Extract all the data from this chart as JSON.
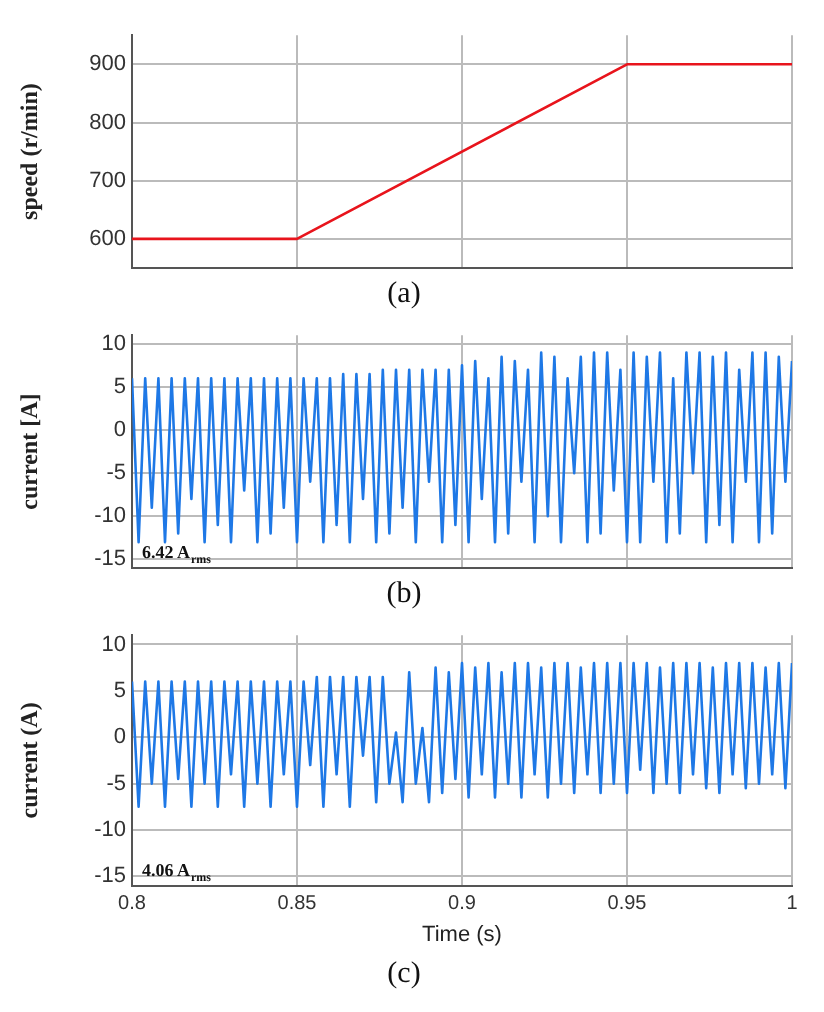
{
  "chart_data": [
    {
      "type": "line",
      "title": "(a)",
      "ylabel": "speed (r/min)",
      "xlim": [
        0.8,
        1
      ],
      "xticks": [
        0.8,
        0.85,
        0.9,
        0.95,
        1
      ],
      "ylim": [
        550,
        950
      ],
      "yticks": [
        600,
        700,
        800,
        900
      ],
      "grid": true,
      "tick_labels": "y",
      "series": [
        {
          "color": "#e8141c",
          "x": [
            0.8,
            0.85,
            0.95,
            1
          ],
          "values": [
            600,
            600,
            900,
            900
          ]
        }
      ]
    },
    {
      "type": "line",
      "title": "(b)",
      "ylabel": "current [A]",
      "xlim": [
        0.8,
        1
      ],
      "xticks": [
        0.8,
        0.85,
        0.9,
        0.95,
        1
      ],
      "ylim": [
        -16,
        11
      ],
      "yticks": [
        -15,
        -10,
        -5,
        0,
        5,
        10
      ],
      "grid": true,
      "tick_labels": "y",
      "annotations": [
        "6.42 A$_{rms}$"
      ],
      "x": [
        0.8,
        0.802,
        0.804,
        0.806,
        0.808,
        0.81,
        0.812,
        0.814,
        0.816,
        0.818,
        0.82,
        0.822,
        0.824,
        0.826,
        0.828,
        0.83,
        0.832,
        0.834,
        0.836,
        0.838,
        0.84,
        0.842,
        0.844,
        0.846,
        0.848,
        0.85,
        0.852,
        0.854,
        0.856,
        0.858,
        0.86,
        0.862,
        0.864,
        0.866,
        0.868,
        0.87,
        0.872,
        0.874,
        0.876,
        0.878,
        0.88,
        0.882,
        0.884,
        0.886,
        0.888,
        0.89,
        0.892,
        0.894,
        0.896,
        0.898,
        0.9,
        0.902,
        0.904,
        0.906,
        0.908,
        0.91,
        0.912,
        0.914,
        0.916,
        0.918,
        0.92,
        0.922,
        0.924,
        0.926,
        0.928,
        0.93,
        0.932,
        0.934,
        0.936,
        0.938,
        0.94,
        0.942,
        0.944,
        0.946,
        0.948,
        0.95,
        0.952,
        0.954,
        0.956,
        0.958,
        0.96,
        0.962,
        0.964,
        0.966,
        0.968,
        0.97,
        0.972,
        0.974,
        0.976,
        0.978,
        0.98,
        0.982,
        0.984,
        0.986,
        0.988,
        0.99,
        0.992,
        0.994,
        0.996,
        0.998,
        1
      ],
      "series": [
        {
          "color": "#1e78e6",
          "values": [
            6,
            -13,
            6,
            -9,
            6,
            -13,
            6,
            -12,
            6,
            -8,
            6,
            -13,
            6,
            -11,
            6,
            -13,
            6,
            -7,
            6,
            -13,
            6,
            -12,
            6,
            -9,
            6,
            -13,
            6,
            -6,
            6,
            -13,
            6,
            -11,
            6.5,
            -13,
            6.5,
            -8,
            6.5,
            -13,
            7,
            -12,
            7,
            -9,
            7,
            -13,
            7,
            -6,
            7,
            -13,
            7,
            -11,
            7.5,
            -13,
            8,
            -8,
            6,
            -13,
            8.5,
            -12,
            8,
            -6,
            7,
            -13,
            9,
            -10,
            8.5,
            -13,
            6,
            -5,
            8.5,
            -13,
            9,
            -12,
            9,
            -7,
            7,
            -13,
            9,
            -13,
            8.5,
            -6,
            9,
            -13,
            6,
            -12,
            9,
            -5,
            9,
            -13,
            8.5,
            -11,
            9,
            -13,
            7,
            -6,
            9,
            -13,
            9,
            -12,
            8.5,
            -6,
            8
          ]
        }
      ]
    },
    {
      "type": "line",
      "title": "(c)",
      "xlabel": "Time (s)",
      "ylabel": "current (A)",
      "xlim": [
        0.8,
        1
      ],
      "xticks": [
        0.8,
        0.85,
        0.9,
        0.95,
        1
      ],
      "ylim": [
        -16,
        11
      ],
      "yticks": [
        -15,
        -10,
        -5,
        0,
        5,
        10
      ],
      "grid": true,
      "annotations": [
        "4.06 A$_{rms}$"
      ],
      "x": [
        0.8,
        0.802,
        0.804,
        0.806,
        0.808,
        0.81,
        0.812,
        0.814,
        0.816,
        0.818,
        0.82,
        0.822,
        0.824,
        0.826,
        0.828,
        0.83,
        0.832,
        0.834,
        0.836,
        0.838,
        0.84,
        0.842,
        0.844,
        0.846,
        0.848,
        0.85,
        0.852,
        0.854,
        0.856,
        0.858,
        0.86,
        0.862,
        0.864,
        0.866,
        0.868,
        0.87,
        0.872,
        0.874,
        0.876,
        0.878,
        0.88,
        0.882,
        0.884,
        0.886,
        0.888,
        0.89,
        0.892,
        0.894,
        0.896,
        0.898,
        0.9,
        0.902,
        0.904,
        0.906,
        0.908,
        0.91,
        0.912,
        0.914,
        0.916,
        0.918,
        0.92,
        0.922,
        0.924,
        0.926,
        0.928,
        0.93,
        0.932,
        0.934,
        0.936,
        0.938,
        0.94,
        0.942,
        0.944,
        0.946,
        0.948,
        0.95,
        0.952,
        0.954,
        0.956,
        0.958,
        0.96,
        0.962,
        0.964,
        0.966,
        0.968,
        0.97,
        0.972,
        0.974,
        0.976,
        0.978,
        0.98,
        0.982,
        0.984,
        0.986,
        0.988,
        0.99,
        0.992,
        0.994,
        0.996,
        0.998,
        1
      ],
      "series": [
        {
          "color": "#1e78e6",
          "values": [
            6,
            -7.5,
            6,
            -5,
            6,
            -7.5,
            6,
            -4.5,
            6,
            -7.5,
            6,
            -5,
            6,
            -7.5,
            6,
            -4,
            6,
            -7.5,
            6,
            -5,
            6,
            -7.5,
            6,
            -4,
            6,
            -7.5,
            6,
            -3,
            6.5,
            -7.5,
            6.5,
            -4,
            6.5,
            -7.5,
            6.5,
            -2,
            6.5,
            -7,
            6.5,
            -5,
            0.5,
            -7,
            7,
            -5,
            1,
            -7,
            7.5,
            -6,
            7,
            -4.5,
            8,
            -6.5,
            7.5,
            -4,
            8,
            -6.5,
            7,
            -5,
            8,
            -6.5,
            8,
            -4,
            7.5,
            -6.5,
            8,
            -5,
            8,
            -6,
            7.5,
            -4,
            8,
            -6,
            8,
            -5,
            8,
            -6,
            8,
            -3.5,
            8,
            -6,
            7.5,
            -5,
            8,
            -6,
            8,
            -4,
            8,
            -5.5,
            7.5,
            -6,
            8,
            -4,
            8,
            -5.5,
            8,
            -5,
            7.5,
            -4,
            8,
            -5.5,
            8
          ]
        }
      ]
    }
  ]
}
